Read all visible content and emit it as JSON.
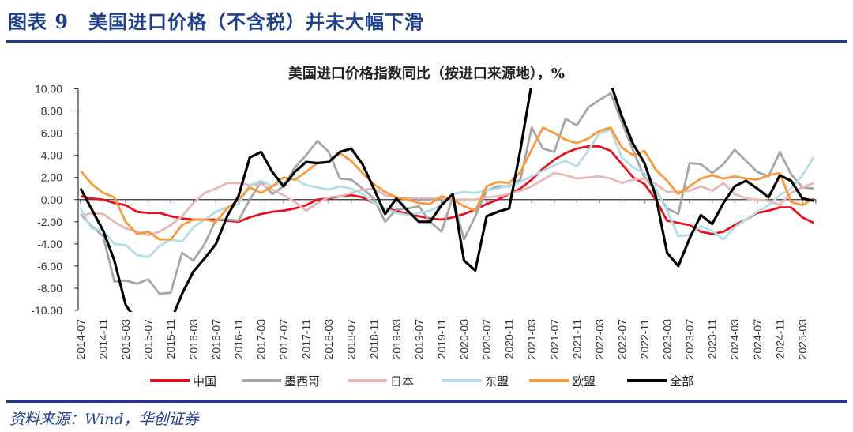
{
  "header": {
    "title": "图表 9　美国进口价格（不含税）并未大幅下滑"
  },
  "footer": {
    "source": "资料来源：Wind，华创证券"
  },
  "chart_data": {
    "type": "line",
    "title": "美国进口价格指数同比（按进口来源地），%",
    "xlabel": "",
    "ylabel": "%",
    "ylim": [
      -10,
      10
    ],
    "yticks": [
      "10.00",
      "8.00",
      "6.00",
      "4.00",
      "2.00",
      "0.00",
      "-2.00",
      "-4.00",
      "-6.00",
      "-8.00",
      "-10.00"
    ],
    "xticks": [
      "2014-07",
      "2014-11",
      "2015-03",
      "2015-07",
      "2015-11",
      "2016-03",
      "2016-07",
      "2016-11",
      "2017-03",
      "2017-07",
      "2017-11",
      "2018-03",
      "2018-07",
      "2018-11",
      "2019-03",
      "2019-07",
      "2019-11",
      "2020-03",
      "2020-07",
      "2020-11",
      "2021-03",
      "2021-07",
      "2021-11",
      "2022-03",
      "2022-07",
      "2022-11",
      "2023-03",
      "2023-07",
      "2023-11",
      "2024-03",
      "2024-07",
      "2024-11",
      "2025-03"
    ],
    "x_start": "2014-07",
    "x_step_months": 2,
    "legend_position": "bottom",
    "series": [
      {
        "name": "中国",
        "color": "#e8101f",
        "values": [
          0.3,
          0.1,
          0,
          -0.3,
          -0.5,
          -1.1,
          -1.2,
          -1.2,
          -1.5,
          -1.7,
          -1.8,
          -1.8,
          -1.8,
          -1.9,
          -2.0,
          -1.6,
          -1.3,
          -1.1,
          -1.0,
          -0.8,
          -0.5,
          0,
          0.1,
          0.3,
          0.4,
          0.2,
          -0.3,
          -0.8,
          -1.0,
          -1.3,
          -1.5,
          -1.7,
          -1.8,
          -1.6,
          -1.3,
          -0.9,
          -0.4,
          0,
          0.5,
          1.0,
          1.8,
          2.8,
          3.6,
          4.2,
          4.6,
          4.8,
          4.8,
          4.4,
          3.2,
          2.0,
          1.4,
          0,
          -1.9,
          -2.1,
          -2.3,
          -2.9,
          -3.1,
          -2.9,
          -2.3,
          -1.8,
          -1.2,
          -1.0,
          -0.7,
          -0.7,
          -1.6,
          -2.1
        ]
      },
      {
        "name": "墨西哥",
        "color": "#a6a6a6",
        "values": [
          -1.3,
          -2.4,
          -3.3,
          -7.4,
          -7.3,
          -7.6,
          -7.2,
          -8.5,
          -8.4,
          -4.8,
          -5.5,
          -4.0,
          -1.8,
          -1.8,
          -1.9,
          0,
          1.6,
          0.5,
          1.2,
          2.9,
          4.0,
          5.3,
          4.3,
          1.9,
          1.8,
          1.0,
          0.1,
          -2.0,
          -0.9,
          -0.8,
          -0.6,
          -2.0,
          -2.9,
          0.2,
          -3.6,
          -1.5,
          0.8,
          1.2,
          1.2,
          1.8,
          6.5,
          4.6,
          4.3,
          7.3,
          6.7,
          8.3,
          9.0,
          9.6,
          7.0,
          4.4,
          2.0,
          0.8,
          -0.8,
          -1.3,
          3.3,
          3.2,
          2.4,
          3.2,
          4.5,
          3.5,
          2.5,
          2.1,
          4.3,
          2.3,
          1.1,
          1.0
        ]
      },
      {
        "name": "日本",
        "color": "#e6b8b7",
        "values": [
          -1.5,
          -1.2,
          -1.3,
          -2.0,
          -2.6,
          -2.9,
          -3.2,
          -2.9,
          -2.3,
          -1.5,
          -0.3,
          0.6,
          1.0,
          1.5,
          1.5,
          1.3,
          1.4,
          0.9,
          0.4,
          -0.2,
          -1.0,
          -0.3,
          0.2,
          0.3,
          0.6,
          0.9,
          1.0,
          0.4,
          0.2,
          0.1,
          0.1,
          0.1,
          0.1,
          0,
          0,
          0,
          0.2,
          0.3,
          0.5,
          0.8,
          1.2,
          1.8,
          2.4,
          2.2,
          1.9,
          2.0,
          2.1,
          1.9,
          1.5,
          1.8,
          1.9,
          1.4,
          0.7,
          0.7,
          0.8,
          1.2,
          0.8,
          1.5,
          0.5,
          0.1,
          0,
          -0.1,
          -0.5,
          0.6,
          1.1,
          1.5
        ]
      },
      {
        "name": "东盟",
        "color": "#b4dde8",
        "values": [
          -0.8,
          -2.6,
          -2.8,
          -4.0,
          -4.1,
          -5.0,
          -5.2,
          -4.2,
          -3.6,
          -3.8,
          -2.5,
          -1.8,
          -1.1,
          -0.7,
          -0.4,
          1.3,
          1.7,
          1.2,
          1.6,
          1.9,
          1.3,
          1.1,
          0.9,
          1.2,
          1.0,
          0.5,
          -0.3,
          -0.8,
          -1.2,
          -1.4,
          -1.2,
          -1.0,
          -0.5,
          0.5,
          0.7,
          0.6,
          0.8,
          1.0,
          1.3,
          1.6,
          2.1,
          2.6,
          3.1,
          3.5,
          3.0,
          4.4,
          6.0,
          6.3,
          3.8,
          2.9,
          2.4,
          1.0,
          -1.0,
          -3.3,
          -3.2,
          -2.4,
          -2.8,
          -3.6,
          -2.5,
          -1.8,
          -1.1,
          -0.5,
          0.4,
          1.0,
          2.2,
          3.8
        ]
      },
      {
        "name": "欧盟",
        "color": "#f79a3e",
        "values": [
          2.6,
          1.4,
          0.6,
          0.2,
          -2.0,
          -3.1,
          -2.9,
          -3.6,
          -3.6,
          -2.3,
          -1.8,
          -1.8,
          -2.0,
          -0.8,
          0,
          1.1,
          0.6,
          1.2,
          2.0,
          1.8,
          2.5,
          3.3,
          3.4,
          4.2,
          3.5,
          2.4,
          1.4,
          0.7,
          0.2,
          0,
          -0.3,
          -0.4,
          0.3,
          0,
          -0.6,
          -1.0,
          1.2,
          1.6,
          1.5,
          2.5,
          4.5,
          6.5,
          6.0,
          5.4,
          5.1,
          5.5,
          6.2,
          6.5,
          4.7,
          4.0,
          4.4,
          2.7,
          1.7,
          0.5,
          1.2,
          1.9,
          2.2,
          1.9,
          2.1,
          1.9,
          1.8,
          2.2,
          2.4,
          -0.2,
          -0.5,
          0.1
        ]
      },
      {
        "name": "全部",
        "color": "#000000",
        "values": [
          1.0,
          -0.9,
          -2.8,
          -5.5,
          -9.5,
          -11,
          -10.5,
          -11.5,
          -11,
          -8.5,
          -6.5,
          -5.3,
          -4.0,
          -1.5,
          0.3,
          3.8,
          4.3,
          2.5,
          1.2,
          2.5,
          3.4,
          3.3,
          3.4,
          4.3,
          4.6,
          3.2,
          1.0,
          -1.3,
          0.1,
          -1.0,
          -2.0,
          -2.0,
          -0.5,
          0.5,
          -5.5,
          -6.4,
          -1.5,
          -1.1,
          -0.8,
          4.5,
          10.5,
          13,
          11,
          12,
          11,
          12,
          12,
          10.5,
          7.5,
          5.0,
          3.3,
          0.3,
          -4.8,
          -6.0,
          -3.5,
          -1.4,
          -2.2,
          -0.3,
          1.2,
          1.7,
          1.0,
          0.2,
          2.2,
          1.7,
          0.1,
          -0.1
        ]
      }
    ]
  }
}
